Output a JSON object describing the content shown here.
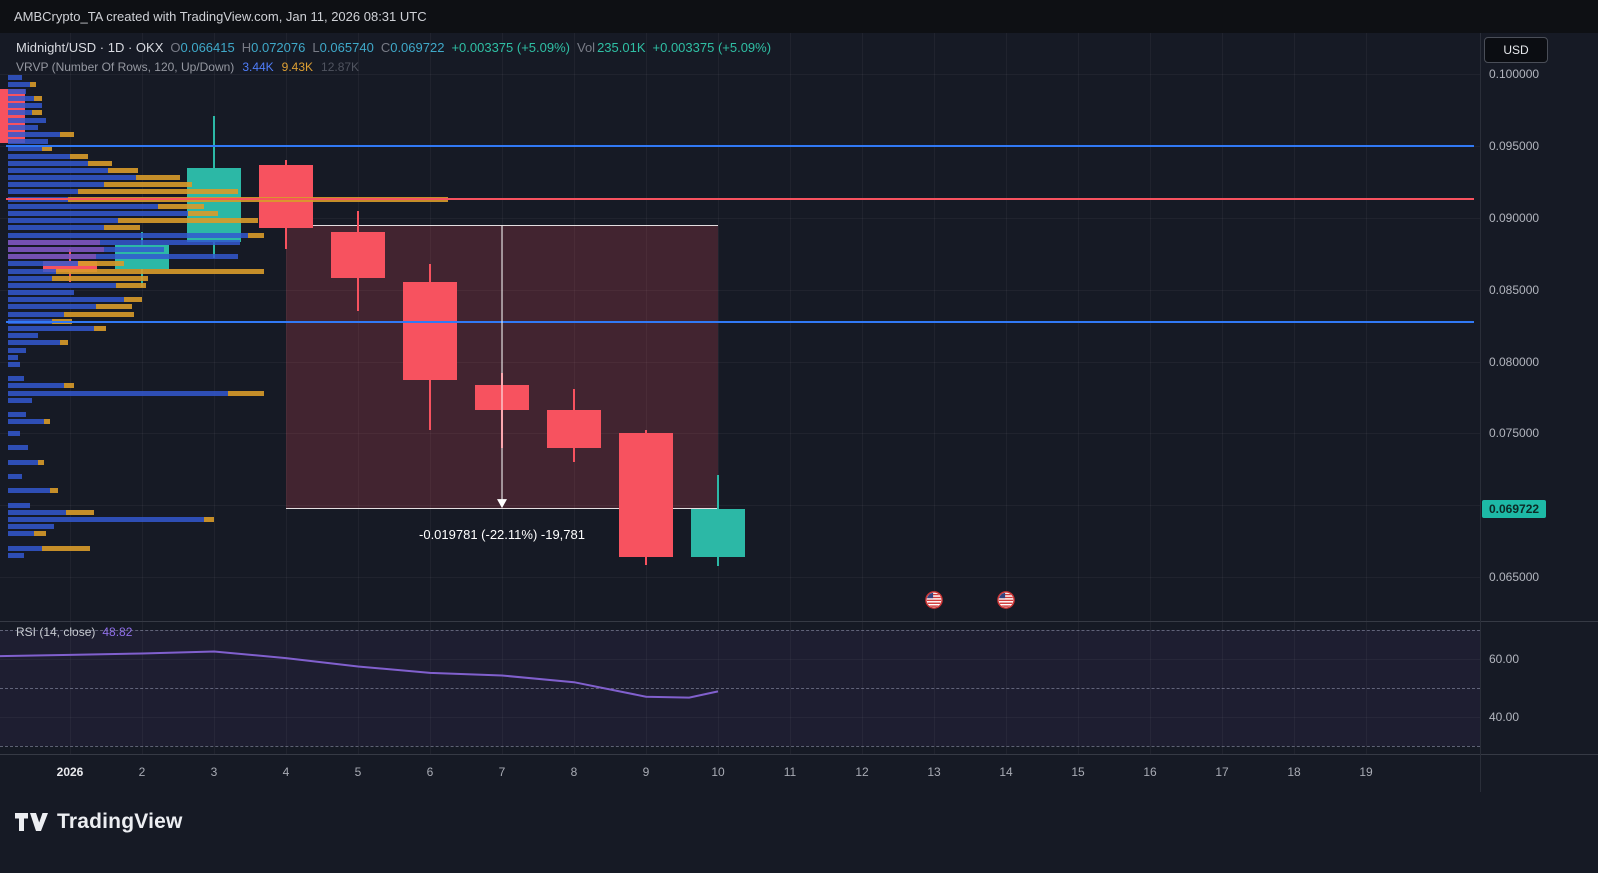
{
  "topbar": {
    "attribution": "AMBCrypto_TA created with TradingView.com, Jan 11, 2026 08:31 UTC"
  },
  "toolbar": {
    "currency_label": "USD"
  },
  "legend": {
    "symbol_title": "Midnight/USD · 1D · OKX",
    "o_label": "O",
    "o": "0.066415",
    "h_label": "H",
    "h": "0.072076",
    "l_label": "L",
    "l": "0.065740",
    "c_label": "C",
    "c": "0.069722",
    "change": "+0.003375 (+5.09%)",
    "vol_label": "Vol",
    "vol": "235.01K",
    "change_2": "+0.003375 (+5.09%)",
    "indicator_name": "VRVP (Number Of Rows, 120, Up/Down)",
    "indicator_value_down": "3.44K",
    "indicator_value_up": "9.43K",
    "indicator_value_total": "12.87K"
  },
  "rsi_pane": {
    "title": "RSI (14, close)",
    "value": "48.82",
    "axis_labels": [
      "60.00",
      "40.00"
    ]
  },
  "measure": {
    "label": "-0.019781 (-22.11%) -19,781"
  },
  "branding": {
    "name": "TradingView"
  },
  "colors": {
    "up": "#2cb8a6",
    "down": "#f7525f",
    "profile_down": "rgba(50,88,207,0.85)",
    "profile_up": "rgba(216,155,42,0.9)",
    "profile_va": "rgba(126,87,194,0.9)",
    "rsi": "#8160ce",
    "badge_bg": "#1db9a6",
    "badge_text": "#0c2a26"
  },
  "chart_data": {
    "type": "candlestick",
    "title": "Midnight/USD · 1D · OKX",
    "interval": "1D",
    "x_axis": {
      "ticks": [
        {
          "day": 1,
          "label": "2026",
          "major": true
        },
        {
          "day": 2,
          "label": "2"
        },
        {
          "day": 3,
          "label": "3"
        },
        {
          "day": 4,
          "label": "4"
        },
        {
          "day": 5,
          "label": "5"
        },
        {
          "day": 6,
          "label": "6"
        },
        {
          "day": 7,
          "label": "7"
        },
        {
          "day": 8,
          "label": "8"
        },
        {
          "day": 9,
          "label": "9"
        },
        {
          "day": 10,
          "label": "10"
        },
        {
          "day": 11,
          "label": "11"
        },
        {
          "day": 12,
          "label": "12"
        },
        {
          "day": 13,
          "label": "13"
        },
        {
          "day": 14,
          "label": "14"
        },
        {
          "day": 15,
          "label": "15"
        },
        {
          "day": 16,
          "label": "16"
        },
        {
          "day": 17,
          "label": "17"
        },
        {
          "day": 18,
          "label": "18"
        },
        {
          "day": 19,
          "label": "19"
        }
      ]
    },
    "y_axis": {
      "min": 0.0615,
      "max": 0.1015,
      "ticks": [
        {
          "price": 0.1,
          "label": "0.100000"
        },
        {
          "price": 0.095,
          "label": "0.095000"
        },
        {
          "price": 0.09,
          "label": "0.090000"
        },
        {
          "price": 0.085,
          "label": "0.085000"
        },
        {
          "price": 0.08,
          "label": "0.080000"
        },
        {
          "price": 0.075,
          "label": "0.075000"
        },
        {
          "price": 0.065,
          "label": "0.065000"
        }
      ],
      "grid": [
        0.1,
        0.095,
        0.09,
        0.085,
        0.08,
        0.075,
        0.07,
        0.065
      ]
    },
    "last": {
      "price": 0.069722,
      "label": "0.069722",
      "direction": "up"
    },
    "candles": [
      {
        "day": 0,
        "o": 0.099,
        "h": 0.0998,
        "l": 0.0948,
        "c": 0.0952
      },
      {
        "day": 1,
        "o": 0.087,
        "h": 0.0878,
        "l": 0.0855,
        "c": 0.0862
      },
      {
        "day": 2,
        "o": 0.0864,
        "h": 0.089,
        "l": 0.0852,
        "c": 0.0881
      },
      {
        "day": 3,
        "o": 0.0883,
        "h": 0.0971,
        "l": 0.0872,
        "c": 0.0935
      },
      {
        "day": 4,
        "o": 0.0937,
        "h": 0.094,
        "l": 0.0878,
        "c": 0.0893
      },
      {
        "day": 5,
        "o": 0.089,
        "h": 0.0905,
        "l": 0.0835,
        "c": 0.0858
      },
      {
        "day": 6,
        "o": 0.0855,
        "h": 0.0868,
        "l": 0.0752,
        "c": 0.0787
      },
      {
        "day": 7,
        "o": 0.0784,
        "h": 0.0792,
        "l": 0.074,
        "c": 0.0766
      },
      {
        "day": 8,
        "o": 0.0766,
        "h": 0.0781,
        "l": 0.073,
        "c": 0.074
      },
      {
        "day": 9,
        "o": 0.075,
        "h": 0.0752,
        "l": 0.0658,
        "c": 0.0664
      },
      {
        "day": 10,
        "o": 0.066415,
        "h": 0.072076,
        "l": 0.06574,
        "c": 0.069722
      }
    ],
    "hlines": [
      {
        "price": 0.095,
        "color": "#3179f5"
      },
      {
        "price": 0.08275,
        "color": "#3179f5"
      },
      {
        "price": 0.0913,
        "color": "#f7525f"
      }
    ],
    "volume_profile": {
      "rows": [
        [
          0.0998,
          14,
          0,
          0
        ],
        [
          0.0993,
          22,
          6,
          0
        ],
        [
          0.0988,
          18,
          0,
          0
        ],
        [
          0.0983,
          26,
          8,
          0
        ],
        [
          0.0978,
          34,
          0,
          0
        ],
        [
          0.0973,
          24,
          10,
          0
        ],
        [
          0.0968,
          38,
          0,
          0
        ],
        [
          0.0963,
          30,
          0,
          0
        ],
        [
          0.0958,
          52,
          14,
          0
        ],
        [
          0.0953,
          40,
          0,
          0
        ],
        [
          0.0948,
          34,
          10,
          0
        ],
        [
          0.0943,
          62,
          18,
          0
        ],
        [
          0.0938,
          80,
          24,
          0
        ],
        [
          0.0933,
          100,
          30,
          0
        ],
        [
          0.0928,
          128,
          44,
          0
        ],
        [
          0.0923,
          96,
          88,
          0
        ],
        [
          0.0918,
          70,
          160,
          0
        ],
        [
          0.0913,
          60,
          380,
          0
        ],
        [
          0.0908,
          150,
          46,
          0
        ],
        [
          0.0903,
          180,
          30,
          0
        ],
        [
          0.0898,
          110,
          140,
          0
        ],
        [
          0.0893,
          96,
          36,
          0
        ],
        [
          0.0888,
          240,
          16,
          0
        ],
        [
          0.0883,
          140,
          0,
          92
        ],
        [
          0.0878,
          60,
          0,
          96
        ],
        [
          0.0873,
          142,
          0,
          88
        ],
        [
          0.0868,
          70,
          46,
          0
        ],
        [
          0.0863,
          48,
          208,
          0
        ],
        [
          0.0858,
          44,
          96,
          0
        ],
        [
          0.0853,
          108,
          30,
          0
        ],
        [
          0.0848,
          66,
          0,
          0
        ],
        [
          0.0843,
          116,
          18,
          0
        ],
        [
          0.0838,
          88,
          36,
          0
        ],
        [
          0.0833,
          56,
          70,
          0
        ],
        [
          0.0828,
          44,
          20,
          0
        ],
        [
          0.0823,
          86,
          12,
          0
        ],
        [
          0.0818,
          30,
          0,
          0
        ],
        [
          0.0813,
          52,
          8,
          0
        ],
        [
          0.0808,
          18,
          0,
          0
        ],
        [
          0.0803,
          10,
          0,
          0
        ],
        [
          0.0798,
          12,
          0,
          0
        ],
        [
          0.0788,
          16,
          0,
          0
        ],
        [
          0.0783,
          56,
          10,
          0
        ],
        [
          0.0778,
          220,
          36,
          0
        ],
        [
          0.0773,
          24,
          0,
          0
        ],
        [
          0.0763,
          18,
          0,
          0
        ],
        [
          0.0758,
          36,
          6,
          0
        ],
        [
          0.075,
          12,
          0,
          0
        ],
        [
          0.074,
          20,
          0,
          0
        ],
        [
          0.073,
          30,
          6,
          0
        ],
        [
          0.072,
          14,
          0,
          0
        ],
        [
          0.071,
          42,
          8,
          0
        ],
        [
          0.07,
          22,
          0,
          0
        ],
        [
          0.0695,
          58,
          28,
          0
        ],
        [
          0.069,
          196,
          10,
          0
        ],
        [
          0.0685,
          46,
          0,
          0
        ],
        [
          0.068,
          26,
          12,
          0
        ],
        [
          0.067,
          34,
          48,
          0
        ],
        [
          0.0665,
          16,
          0,
          0
        ]
      ]
    },
    "measure_tool": {
      "day_from": 4,
      "day_to": 10,
      "price_top": 0.089503,
      "price_bottom": 0.069722,
      "change": "-0.019781",
      "change_pct": "-22.11%",
      "extra": "-19,781"
    },
    "events": [
      {
        "day": 13,
        "type": "us-economic-event"
      },
      {
        "day": 14,
        "type": "us-economic-event"
      }
    ],
    "rsi": {
      "period": 14,
      "source": "close",
      "last_value": 48.82,
      "levels": [
        70,
        50,
        30
      ],
      "visible_ticks": [
        60,
        40
      ],
      "points": [
        [
          0,
          61.0
        ],
        [
          1,
          61.4
        ],
        [
          2,
          61.9
        ],
        [
          3,
          62.6
        ],
        [
          4,
          60.3
        ],
        [
          5,
          57.4
        ],
        [
          6,
          55.2
        ],
        [
          7,
          54.3
        ],
        [
          8,
          52.0
        ],
        [
          9,
          47.0
        ],
        [
          9.6,
          46.7
        ],
        [
          10,
          48.82
        ]
      ]
    }
  }
}
